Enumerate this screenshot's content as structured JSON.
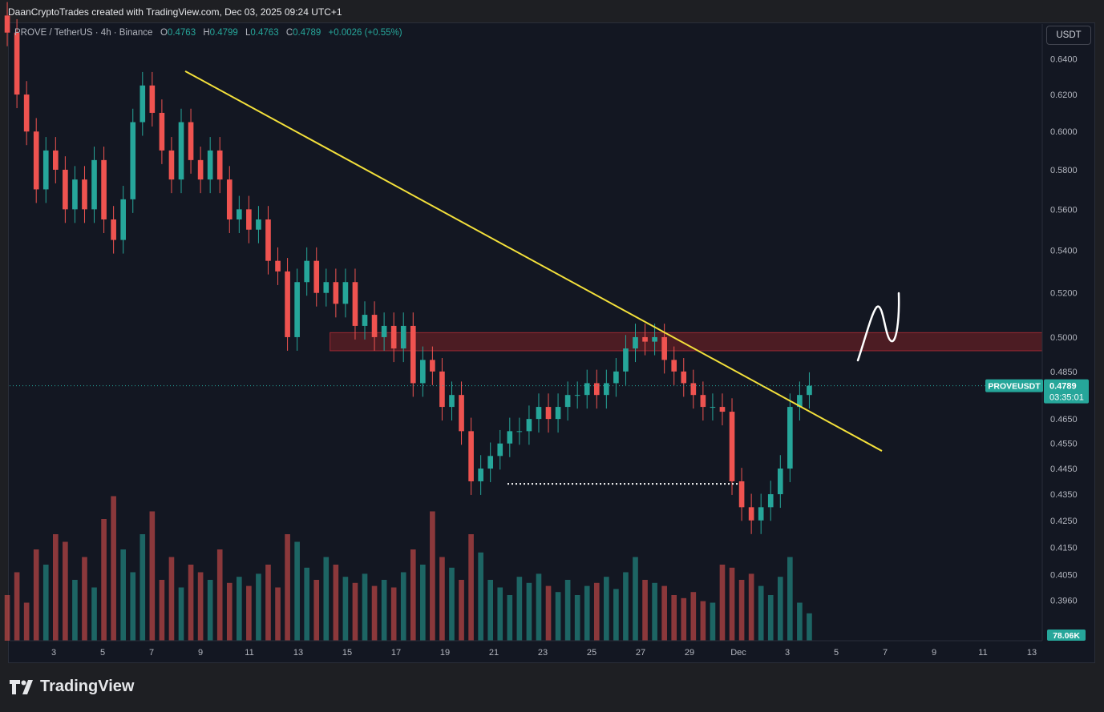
{
  "header": {
    "caption": "DaanCryptoTrades created with TradingView.com, Dec 03, 2025 09:24 UTC+1"
  },
  "legend": {
    "symbol": "PROVE / TetherUS · 4h · Binance",
    "o_label": "O",
    "o": "0.4763",
    "h_label": "H",
    "h": "0.4799",
    "l_label": "L",
    "l": "0.4763",
    "c_label": "C",
    "c": "0.4789",
    "change": "+0.0026 (+0.55%)"
  },
  "toolbar": {
    "currency": "USDT"
  },
  "footer": {
    "brand": "TradingView"
  },
  "colors": {
    "up": "#26a69a",
    "down": "#ef5350",
    "trendline": "#f3e03b",
    "zone": "#5b1e24",
    "background": "#131722"
  },
  "chart_data": {
    "type": "candlestick",
    "symbol": "PROVEUSDT",
    "interval": "4h",
    "y_scale": "log",
    "ylim": [
      0.382,
      0.66
    ],
    "y_ticks": [
      "0.6400",
      "0.6200",
      "0.6000",
      "0.5800",
      "0.5600",
      "0.5400",
      "0.5200",
      "0.5000",
      "0.4850",
      "0.4650",
      "0.4550",
      "0.4450",
      "0.4350",
      "0.4250",
      "0.4150",
      "0.4050",
      "0.3960"
    ],
    "x_ticks": [
      "3",
      "5",
      "7",
      "9",
      "11",
      "13",
      "15",
      "17",
      "19",
      "21",
      "23",
      "25",
      "27",
      "29",
      "Dec",
      "3",
      "5",
      "7",
      "9",
      "11",
      "13"
    ],
    "last_price": {
      "symbol": "PROVEUSDT",
      "price": "0.4789",
      "countdown": "03:35:01"
    },
    "volume_label": "78.06K",
    "trendline": {
      "from": [
        "Nov 8",
        0.633
      ],
      "to": [
        "Dec 7",
        0.452
      ]
    },
    "resistance_zone": [
      0.494,
      0.502
    ],
    "support_level": 0.439,
    "closes": [
      0.655,
      0.62,
      0.6,
      0.57,
      0.59,
      0.58,
      0.56,
      0.575,
      0.56,
      0.585,
      0.555,
      0.545,
      0.565,
      0.605,
      0.625,
      0.61,
      0.59,
      0.575,
      0.605,
      0.585,
      0.575,
      0.59,
      0.575,
      0.555,
      0.56,
      0.55,
      0.555,
      0.535,
      0.53,
      0.5,
      0.525,
      0.535,
      0.52,
      0.525,
      0.515,
      0.525,
      0.505,
      0.51,
      0.5,
      0.505,
      0.495,
      0.505,
      0.48,
      0.49,
      0.485,
      0.47,
      0.475,
      0.46,
      0.44,
      0.445,
      0.45,
      0.455,
      0.46,
      0.46,
      0.465,
      0.47,
      0.465,
      0.47,
      0.475,
      0.475,
      0.48,
      0.475,
      0.48,
      0.485,
      0.495,
      0.5,
      0.498,
      0.5,
      0.49,
      0.485,
      0.48,
      0.475,
      0.47,
      0.47,
      0.468,
      0.44,
      0.43,
      0.425,
      0.43,
      0.435,
      0.445,
      0.47,
      0.475,
      0.4789
    ],
    "volumes": [
      30,
      45,
      25,
      60,
      50,
      70,
      65,
      40,
      55,
      35,
      80,
      95,
      60,
      45,
      70,
      85,
      40,
      55,
      35,
      50,
      45,
      40,
      60,
      38,
      42,
      36,
      44,
      50,
      35,
      70,
      65,
      48,
      40,
      55,
      50,
      42,
      38,
      44,
      36,
      40,
      35,
      45,
      60,
      50,
      85,
      55,
      48,
      40,
      70,
      58,
      40,
      35,
      30,
      42,
      38,
      44,
      36,
      32,
      40,
      30,
      36,
      38,
      42,
      34,
      45,
      55,
      40,
      38,
      36,
      30,
      28,
      32,
      26,
      25,
      50,
      48,
      40,
      44,
      36,
      30,
      42,
      55,
      25,
      18
    ]
  }
}
